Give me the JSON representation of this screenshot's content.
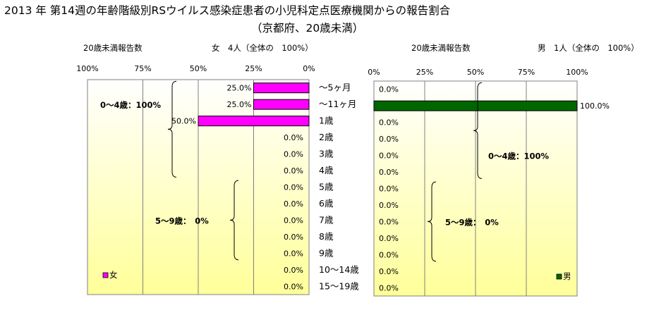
{
  "chart_data": {
    "type": "bar",
    "title": "2013 年 第14週の年齢階級別RSウイルス感染症患者の小児科定点医療機関からの報告割合",
    "subtitle": "（京都府、20歳未満）",
    "categories": [
      "～5ヶ月",
      "～11ヶ月",
      "1歳",
      "2歳",
      "3歳",
      "4歳",
      "5歳",
      "6歳",
      "7歳",
      "8歳",
      "9歳",
      "10～14歳",
      "15～19歳"
    ],
    "xlim": [
      0,
      100
    ],
    "tick_labels": [
      "0%",
      "25%",
      "50%",
      "75%",
      "100%"
    ],
    "grid": true,
    "colors": {
      "female": "#ff00ff",
      "male": "#006600",
      "background_top": "#ffffff",
      "background_bottom": "#ffff99"
    },
    "panels": [
      {
        "side": "left",
        "direction": "reversed",
        "count_label": "20歳未満報告数",
        "total_label": "女　4人（全体の　100%）",
        "legend": "女",
        "legend_position": "bottom-left",
        "values": [
          25.0,
          25.0,
          50.0,
          0.0,
          0.0,
          0.0,
          0.0,
          0.0,
          0.0,
          0.0,
          0.0,
          0.0,
          0.0
        ],
        "value_labels": [
          "25.0%",
          "25.0%",
          "50.0%",
          "0.0%",
          "0.0%",
          "0.0%",
          "0.0%",
          "0.0%",
          "0.0%",
          "0.0%",
          "0.0%",
          "0.0%",
          "0.0%"
        ],
        "annotations": [
          "0～4歳：100%",
          "5～9歳：　0%"
        ]
      },
      {
        "side": "right",
        "direction": "normal",
        "count_label": "20歳未満報告数",
        "total_label": "男　1人（全体の　100%）",
        "legend": "男",
        "legend_position": "bottom-right",
        "values": [
          0.0,
          100.0,
          0.0,
          0.0,
          0.0,
          0.0,
          0.0,
          0.0,
          0.0,
          0.0,
          0.0,
          0.0,
          0.0
        ],
        "value_labels": [
          "0.0%",
          "100.0%",
          "0.0%",
          "0.0%",
          "0.0%",
          "0.0%",
          "0.0%",
          "0.0%",
          "0.0%",
          "0.0%",
          "0.0%",
          "0.0%",
          "0.0%"
        ],
        "annotations": [
          "0～4歳：100%",
          "5～9歳：　0%"
        ]
      }
    ]
  }
}
